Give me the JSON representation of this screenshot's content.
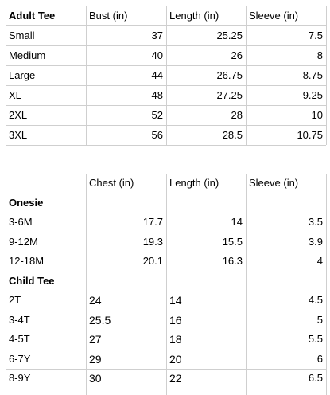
{
  "adult": {
    "header": [
      "Adult Tee",
      "Bust (in)",
      "Length (in)",
      "Sleeve (in)"
    ],
    "rows": [
      [
        "Small",
        "37",
        "25.25",
        "7.5"
      ],
      [
        "Medium",
        "40",
        "26",
        "8"
      ],
      [
        "Large",
        "44",
        "26.75",
        "8.75"
      ],
      [
        "XL",
        "48",
        "27.25",
        "9.25"
      ],
      [
        "2XL",
        "52",
        "28",
        "10"
      ],
      [
        "3XL",
        "56",
        "28.5",
        "10.75"
      ]
    ]
  },
  "kids": {
    "header": [
      "",
      "Chest (in)",
      "Length (in)",
      "Sleeve (in)"
    ],
    "onesie_label": "Onesie",
    "onesie_rows": [
      [
        "3-6M",
        "17.7",
        "14",
        "3.5"
      ],
      [
        "9-12M",
        "19.3",
        "15.5",
        "3.9"
      ],
      [
        "12-18M",
        "20.1",
        "16.3",
        "4"
      ]
    ],
    "child_label": "Child Tee",
    "child_rows": [
      [
        "2T",
        "24",
        "14",
        "4.5"
      ],
      [
        "3-4T",
        "25.5",
        "16",
        "5"
      ],
      [
        "4-5T",
        "27",
        "18",
        "5.5"
      ],
      [
        "6-7Y",
        "29",
        "20",
        "6"
      ],
      [
        "8-9Y",
        "30",
        "22",
        "6.5"
      ]
    ]
  }
}
